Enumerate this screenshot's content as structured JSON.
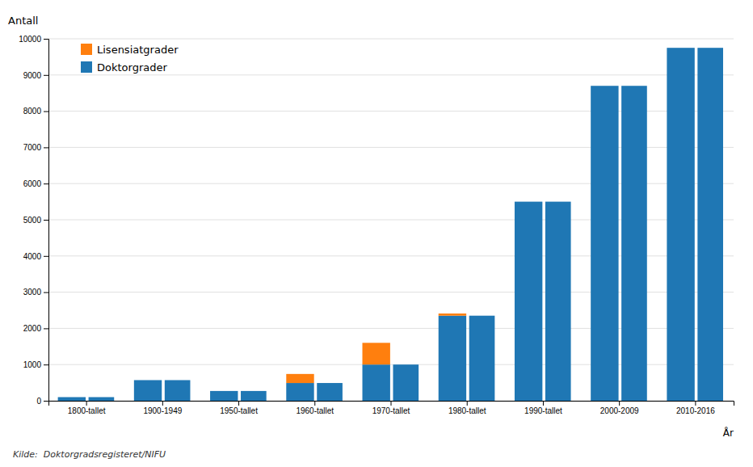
{
  "chart_data": {
    "type": "bar",
    "categories": [
      "1800-tallet",
      "1900-1949",
      "1950-tallet",
      "1960-tallet",
      "1970-tallet",
      "1980-tallet",
      "1990-tallet",
      "2000-2009",
      "2010-2016"
    ],
    "series": [
      {
        "name": "Doktorgrader",
        "values": [
          100,
          570,
          270,
          490,
          1000,
          2350,
          5500,
          8700,
          9750
        ]
      },
      {
        "name": "Lisensiatgrader",
        "values": [
          0,
          0,
          0,
          250,
          600,
          60,
          0,
          0,
          0
        ]
      }
    ],
    "stacked": true,
    "ylabel": "Antall",
    "xlabel": "År",
    "ylim": [
      0,
      10000
    ],
    "yticks": [
      0,
      1000,
      2000,
      3000,
      4000,
      5000,
      6000,
      7000,
      8000,
      9000,
      10000
    ],
    "grid": true,
    "legend": "upper left",
    "annotations": [
      "Kilde:  Doktorgradsregisteret/NIFU"
    ]
  }
}
